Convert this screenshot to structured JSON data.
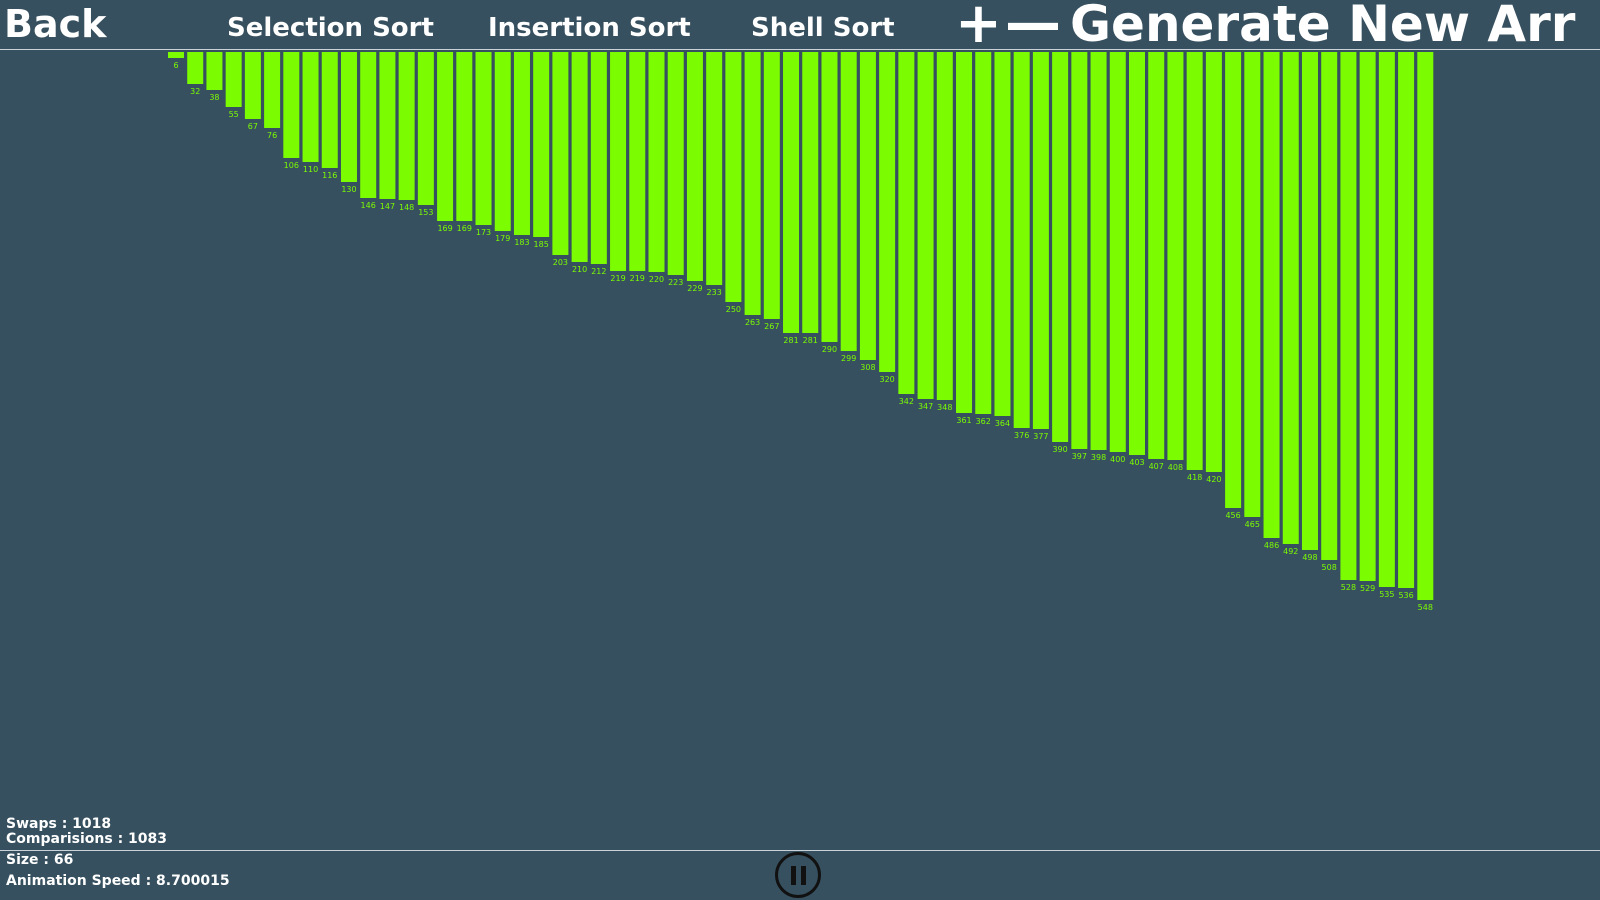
{
  "nav": {
    "back": "Back",
    "selection_sort": "Selection Sort",
    "insertion_sort": "Insertion Sort",
    "shell_sort": "Shell Sort",
    "increase": "+",
    "decrease": "—",
    "generate": "Generate New Arr"
  },
  "stats": {
    "swaps": "Swaps : 1018",
    "comparisons": "Comparisions : 1083",
    "size": "Size : 66",
    "speed": "Animation Speed : 8.700015"
  },
  "controls": {
    "pause_icon": "pause-icon"
  },
  "colors": {
    "background": "#36505f",
    "bar": "#7cfc00",
    "label": "#7cfc00",
    "text": "#ffffff"
  },
  "chart_data": {
    "type": "bar",
    "orientation": "hanging-from-top",
    "title": "",
    "xlabel": "",
    "ylabel": "",
    "ylim": [
      0,
      548
    ],
    "values": [
      6,
      32,
      38,
      55,
      67,
      76,
      106,
      110,
      116,
      130,
      146,
      147,
      148,
      153,
      169,
      169,
      173,
      179,
      183,
      185,
      203,
      210,
      212,
      219,
      219,
      220,
      223,
      229,
      233,
      250,
      263,
      267,
      281,
      281,
      290,
      299,
      308,
      320,
      342,
      347,
      348,
      361,
      362,
      364,
      376,
      377,
      390,
      397,
      398,
      400,
      403,
      407,
      408,
      418,
      420,
      456,
      465,
      486,
      492,
      498,
      508,
      528,
      529,
      535,
      536,
      548
    ]
  }
}
